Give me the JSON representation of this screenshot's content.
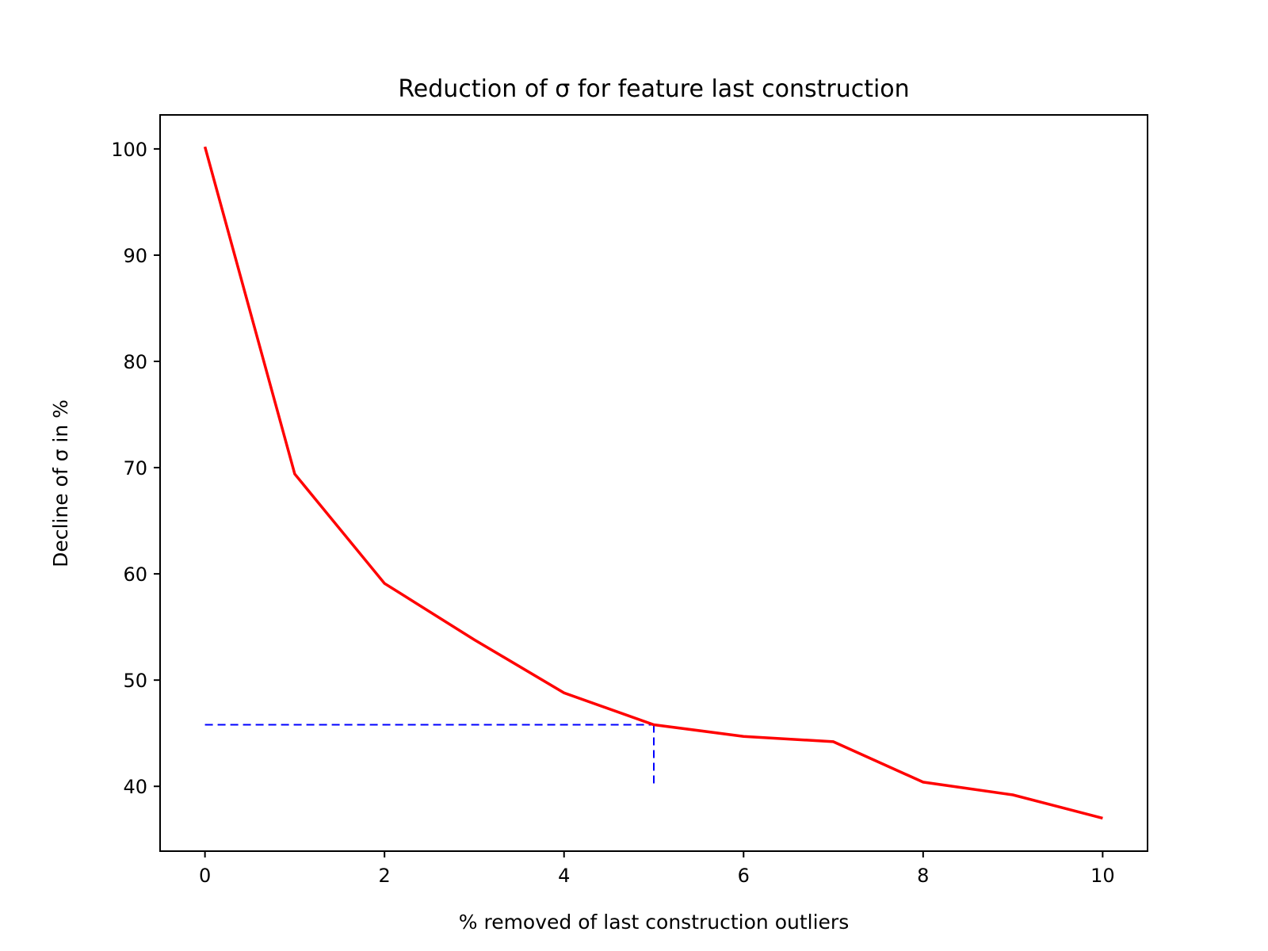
{
  "chart_data": {
    "type": "line",
    "title": "Reduction of σ for feature last construction",
    "xlabel": "% removed of last construction outliers",
    "ylabel": "Decline of σ in %",
    "xlim": [
      -0.5,
      10.5
    ],
    "ylim": [
      33.9,
      103.2
    ],
    "x_ticks": [
      0,
      2,
      4,
      6,
      8,
      10
    ],
    "y_ticks": [
      40,
      50,
      60,
      70,
      80,
      90,
      100
    ],
    "x_tick_labels": [
      "0",
      "2",
      "4",
      "6",
      "8",
      "10"
    ],
    "y_tick_labels": [
      "40",
      "50",
      "60",
      "70",
      "80",
      "90",
      "100"
    ],
    "grid": false,
    "series": [
      {
        "color": "#ff0000",
        "style": "solid",
        "x": [
          0,
          1,
          2,
          3,
          4,
          5,
          6,
          7,
          8,
          9,
          10
        ],
        "y": [
          100.2,
          69.4,
          59.1,
          53.8,
          48.8,
          45.8,
          44.7,
          44.2,
          40.4,
          39.2,
          37.0
        ]
      }
    ],
    "reference_lines": [
      {
        "color": "#0000ff",
        "style": "dashed",
        "x": [
          0,
          5
        ],
        "y": [
          45.8,
          45.8
        ]
      },
      {
        "color": "#0000ff",
        "style": "dashed",
        "x": [
          5,
          5
        ],
        "y": [
          45.8,
          40.0
        ]
      }
    ]
  }
}
